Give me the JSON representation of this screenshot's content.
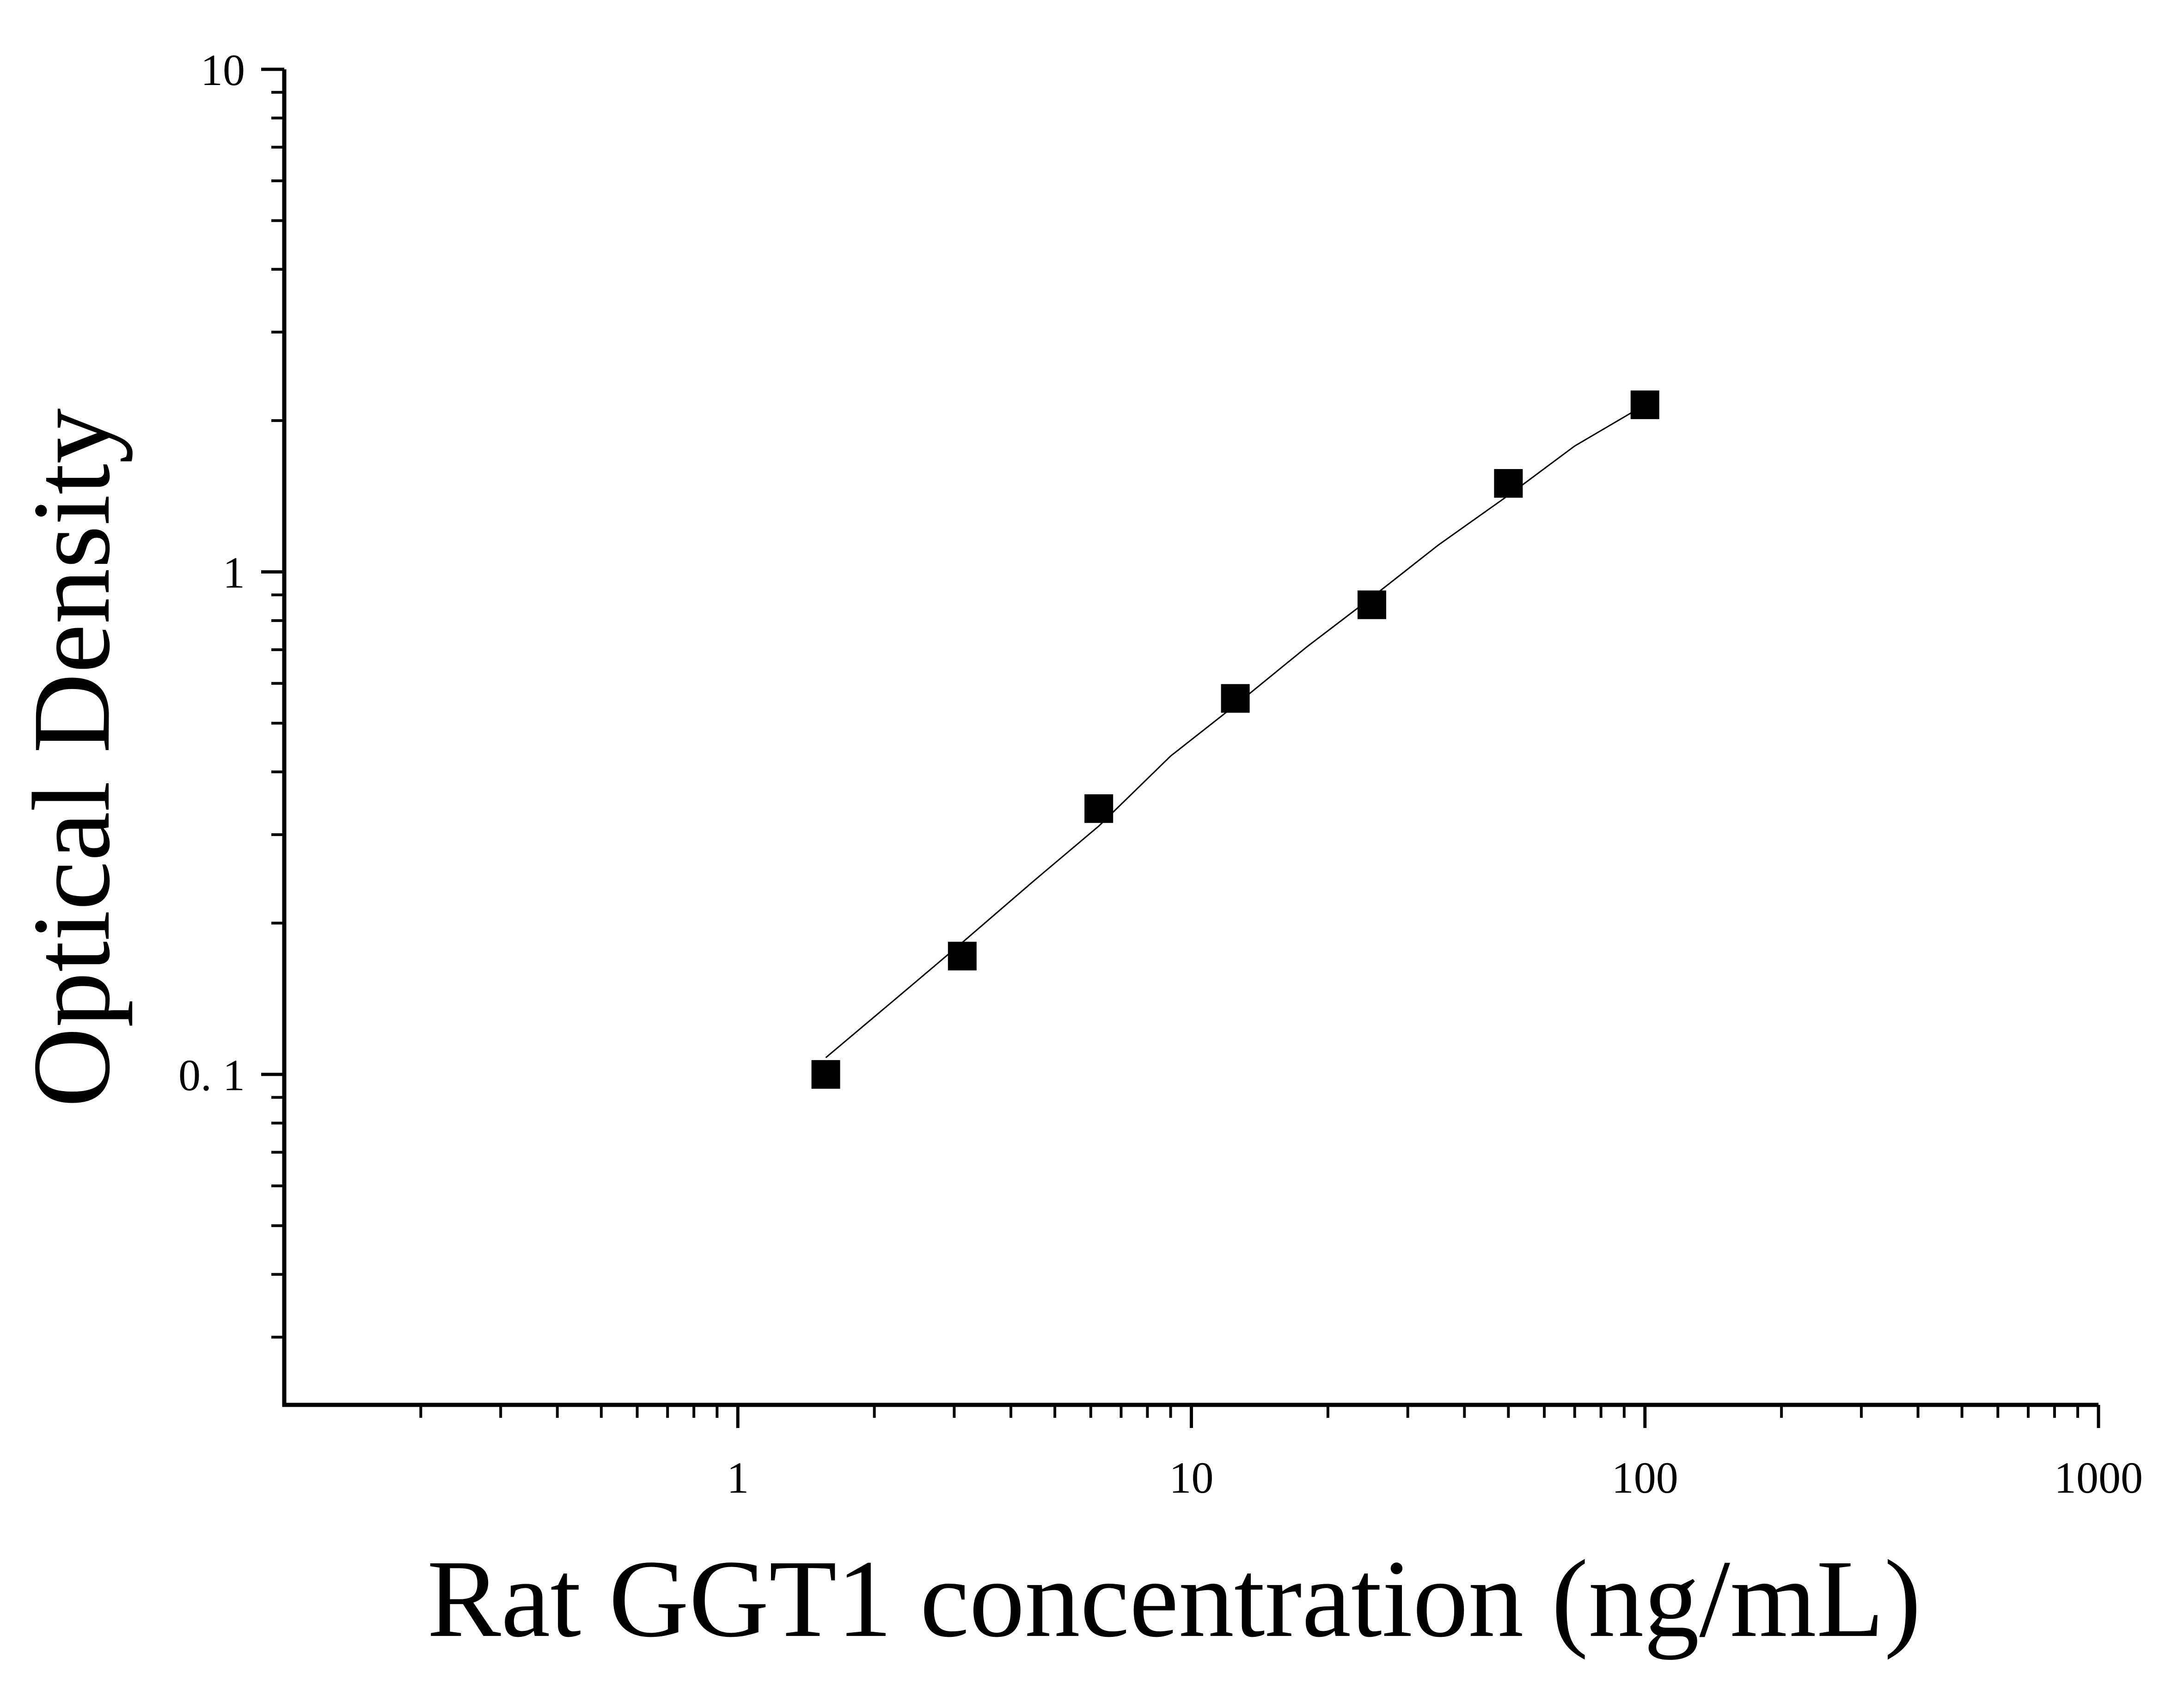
{
  "chart_data": {
    "type": "scatter",
    "title": "",
    "xlabel": "Rat GGT1 concentration (ng/mL)",
    "ylabel": "Optical Density",
    "x_scale": "log",
    "y_scale": "log",
    "xlim": [
      0.1,
      1000
    ],
    "ylim": [
      0.022,
      10
    ],
    "x_tick_labels": [
      "1",
      "10",
      "100",
      "1000"
    ],
    "x_tick_values": [
      1,
      10,
      100,
      1000
    ],
    "y_tick_labels": [
      "0. 1",
      "1",
      "10"
    ],
    "y_tick_values": [
      0.1,
      1,
      10
    ],
    "grid": false,
    "legend": "none",
    "marker": "square",
    "color": "#000000",
    "series": [
      {
        "x": [
          1.563,
          3.125,
          6.25,
          12.5,
          25,
          50,
          100
        ],
        "y": [
          0.1,
          0.172,
          0.338,
          0.56,
          0.86,
          1.5,
          2.15
        ]
      }
    ],
    "fit_curve": {
      "x": [
        1.563,
        2.2,
        3.125,
        4.5,
        6.25,
        9,
        12.5,
        18,
        25,
        35,
        50,
        70,
        100
      ],
      "y": [
        0.108,
        0.14,
        0.183,
        0.243,
        0.312,
        0.43,
        0.543,
        0.71,
        0.89,
        1.13,
        1.42,
        1.78,
        2.15
      ]
    }
  }
}
